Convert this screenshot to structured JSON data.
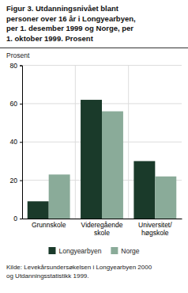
{
  "chart_data": {
    "type": "bar",
    "title": "Figur 3. Utdanningsnivået blant\npersoner over 16 år i Longyearbyen,\nper 1. desember 1999 og Norge, per\n1. oktober 1999. Prosent",
    "ylabel": "Prosent",
    "categories": [
      "Grunnskole",
      "Videregående\nskole",
      "Universitet/\nhøgskole"
    ],
    "series": [
      {
        "name": "Longyearbyen",
        "color": "#1a3a2a",
        "values": [
          9,
          62,
          30
        ]
      },
      {
        "name": "Norge",
        "color": "#8aab99",
        "values": [
          23,
          56,
          22
        ]
      }
    ],
    "ylim": [
      0,
      80
    ],
    "yticks": [
      0,
      20,
      40,
      60,
      80
    ],
    "grid": true,
    "legend": "bottom",
    "annotations": [
      "Kilde: Levekårsundersøkelsen i Longyearbyen 2000\nog Utdanningsstatistikk 1999."
    ]
  }
}
